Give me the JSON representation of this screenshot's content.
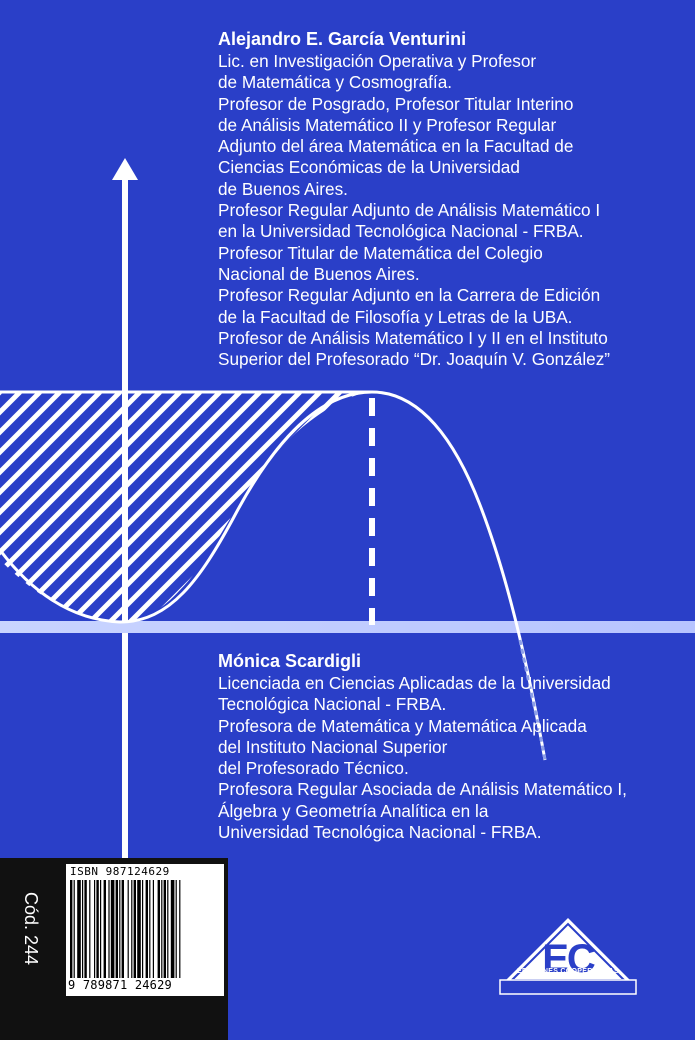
{
  "author1": {
    "name": "Alejandro E. García Venturini",
    "lines": [
      "Lic. en Investigación Operativa y Profesor",
      "de Matemática y Cosmografía.",
      "Profesor de Posgrado, Profesor Titular Interino",
      "de Análisis Matemático II y Profesor Regular",
      "Adjunto del área Matemática en la Facultad de",
      "Ciencias Económicas de la Universidad",
      "de Buenos Aires.",
      "Profesor Regular Adjunto de Análisis Matemático I",
      "en la Universidad Tecnológica Nacional - FRBA.",
      "Profesor Titular de Matemática del Colegio",
      "Nacional de Buenos Aires.",
      "Profesor Regular Adjunto en la Carrera de Edición",
      "de la Facultad de Filosofía y Letras de la UBA.",
      "Profesor de Análisis Matemático I y II en el Instituto",
      "Superior del Profesorado “Dr. Joaquín V. González”"
    ]
  },
  "author2": {
    "name": "Mónica Scardigli",
    "lines": [
      "Licenciada en Ciencias Aplicadas de la Universidad",
      "Tecnológica Nacional - FRBA.",
      "Profesora de Matemática y Matemática Aplicada",
      "del Instituto Nacional Superior",
      "del Profesorado Técnico.",
      "Profesora Regular Asociada de Análisis Matemático I,",
      "Álgebra y Geometría Analítica en la",
      "Universidad Tecnológica Nacional - FRBA."
    ]
  },
  "barcode": {
    "code_label": "Cód. 244",
    "isbn_text": "ISBN 987124629",
    "ean_digits": "9 789871 24629"
  },
  "publisher": {
    "logo_letters": "EC",
    "name": "EDICIONES COOPERATIVAS"
  },
  "colors": {
    "background": "#2a3fc8",
    "graph_line": "#ffffff",
    "panel": "#111111"
  }
}
